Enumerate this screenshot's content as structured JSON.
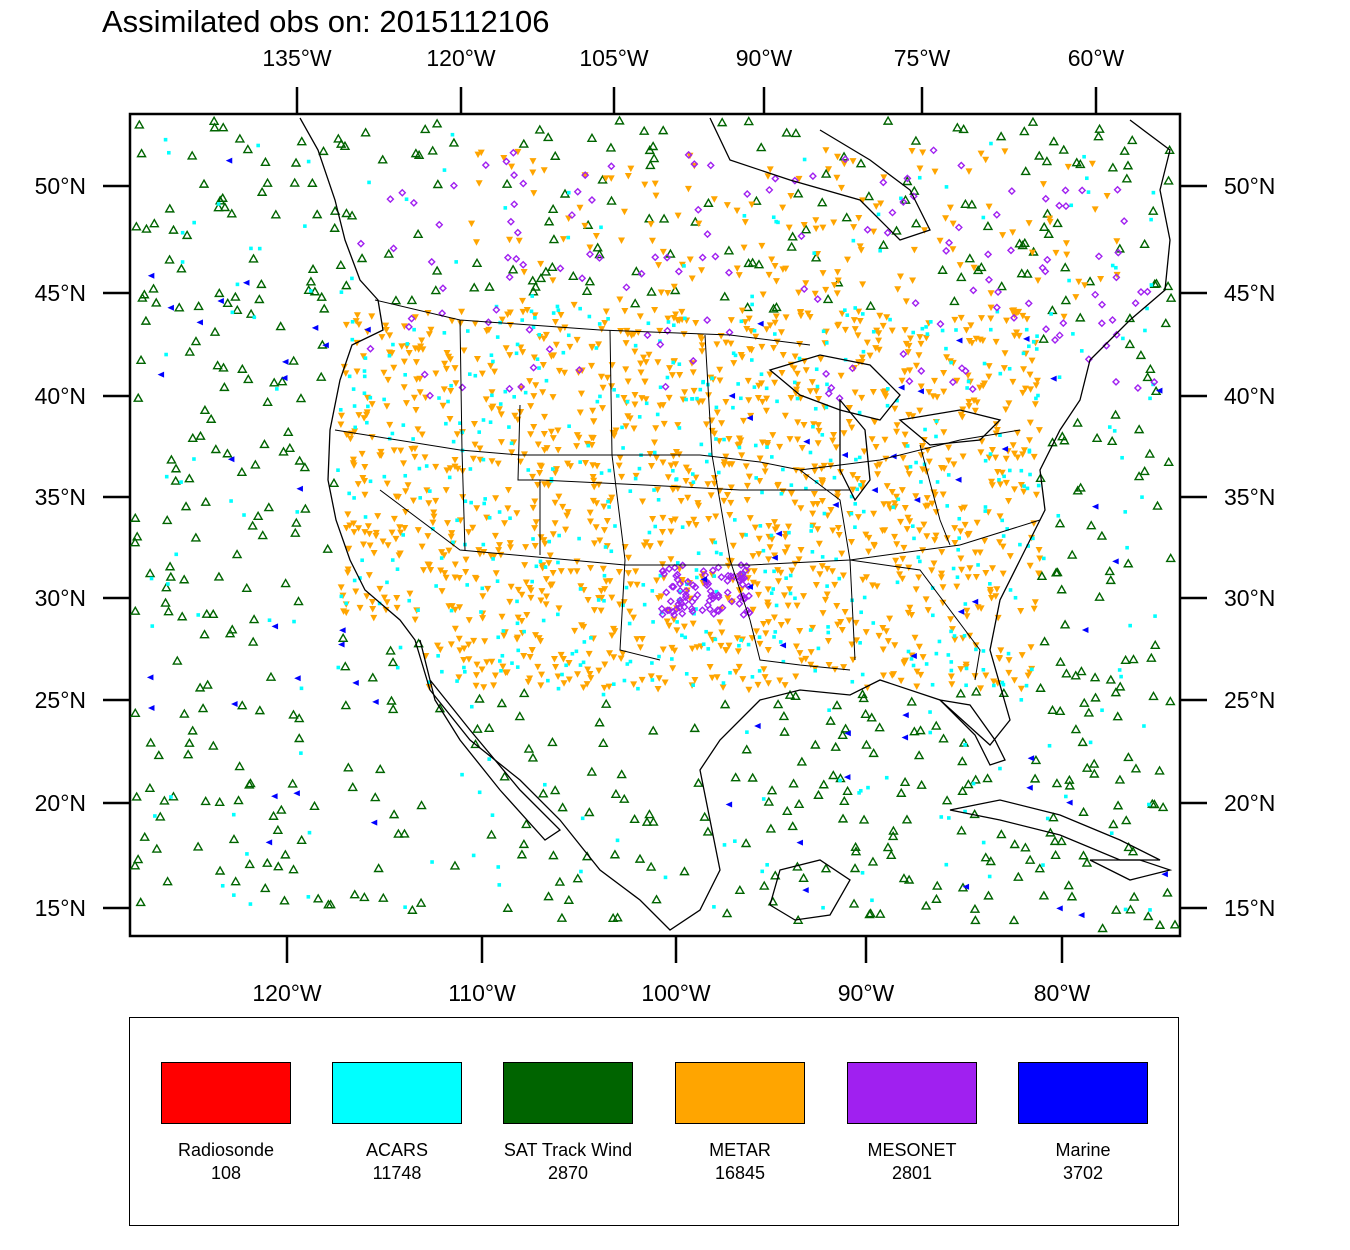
{
  "title": "Assimilated obs on: 2015112106",
  "map": {
    "top_lon_labels": [
      "135°W",
      "120°W",
      "105°W",
      "90°W",
      "75°W",
      "60°W"
    ],
    "bottom_lon_labels": [
      "120°W",
      "110°W",
      "100°W",
      "90°W",
      "80°W"
    ],
    "lat_labels": [
      "50°N",
      "45°N",
      "40°N",
      "35°N",
      "30°N",
      "25°N",
      "20°N",
      "15°N"
    ],
    "frame_color": "#000000",
    "coastline_color": "#000000"
  },
  "legend": [
    {
      "name": "Radiosonde",
      "count": "108",
      "color": "#ff0000",
      "marker": "none-visible"
    },
    {
      "name": "ACARS",
      "count": "11748",
      "color": "#00ffff",
      "marker": "square-dot"
    },
    {
      "name": "SAT Track Wind",
      "count": "2870",
      "color": "#006400",
      "marker": "open-triangle"
    },
    {
      "name": "METAR",
      "count": "16845",
      "color": "#ffa500",
      "marker": "inverted-triangle"
    },
    {
      "name": "MESONET",
      "count": "2801",
      "color": "#a020f0",
      "marker": "diamond"
    },
    {
      "name": "Marine",
      "count": "3702",
      "color": "#0000ff",
      "marker": "left-triangle"
    }
  ]
}
